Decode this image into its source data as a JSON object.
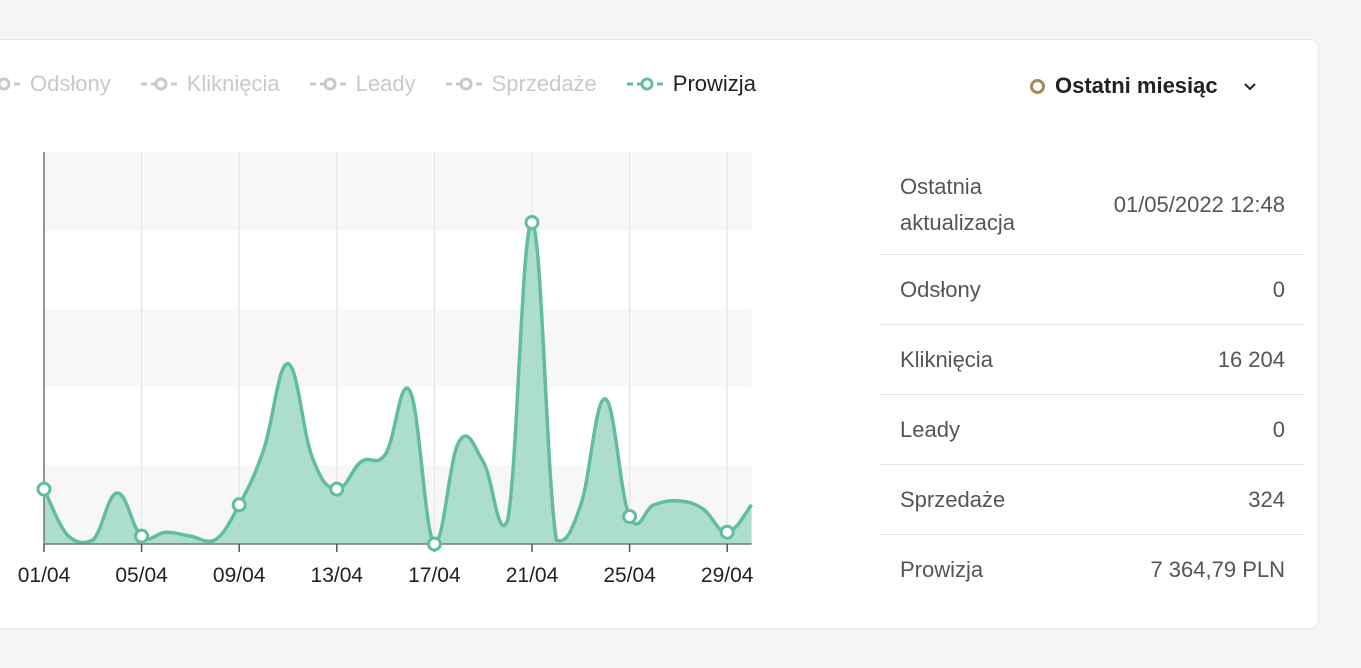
{
  "legend": [
    {
      "label": "Odsłony",
      "active": false
    },
    {
      "label": "Kliknięcia",
      "active": false
    },
    {
      "label": "Leady",
      "active": false
    },
    {
      "label": "Sprzedaże",
      "active": false
    },
    {
      "label": "Prowizja",
      "active": true
    }
  ],
  "period": {
    "label": "Ostatni miesiąc",
    "dot_color": "#a8875a",
    "icon": "chevron-down-icon"
  },
  "stats": {
    "updated": {
      "label": "Ostatnia aktualizacja",
      "value": "01/05/2022 12:48"
    },
    "views": {
      "label": "Odsłony",
      "value": "0"
    },
    "clicks": {
      "label": "Kliknięcia",
      "value": "16 204"
    },
    "leads": {
      "label": "Leady",
      "value": "0"
    },
    "sales": {
      "label": "Sprzedaże",
      "value": "324"
    },
    "commission": {
      "label": "Prowizja",
      "value": "7 364,79 PLN"
    }
  },
  "colors": {
    "series": "#62bd9d",
    "series_fill": "#a8dcc8",
    "muted": "#c9c9cc"
  },
  "chart_data": {
    "type": "area",
    "x": [
      "01/04",
      "02/04",
      "03/04",
      "04/04",
      "05/04",
      "06/04",
      "07/04",
      "08/04",
      "09/04",
      "10/04",
      "11/04",
      "12/04",
      "13/04",
      "14/04",
      "15/04",
      "16/04",
      "17/04",
      "18/04",
      "19/04",
      "20/04",
      "21/04",
      "22/04",
      "23/04",
      "24/04",
      "25/04",
      "26/04",
      "27/04",
      "28/04",
      "29/04",
      "30/04"
    ],
    "tick_labels": [
      "01/04",
      "05/04",
      "09/04",
      "13/04",
      "17/04",
      "21/04",
      "25/04",
      "29/04"
    ],
    "series": [
      {
        "name": "Prowizja",
        "values": [
          14,
          2,
          1,
          13,
          2,
          3,
          2,
          1,
          10,
          24,
          46,
          22,
          14,
          21,
          23,
          39,
          0,
          26,
          21,
          6,
          82,
          1,
          10,
          37,
          7,
          10,
          11,
          9,
          3,
          10
        ]
      }
    ],
    "ylim": [
      0,
      100
    ],
    "grid": true,
    "markers_at": [
      0,
      4,
      8,
      12,
      16,
      20,
      24,
      28
    ]
  }
}
